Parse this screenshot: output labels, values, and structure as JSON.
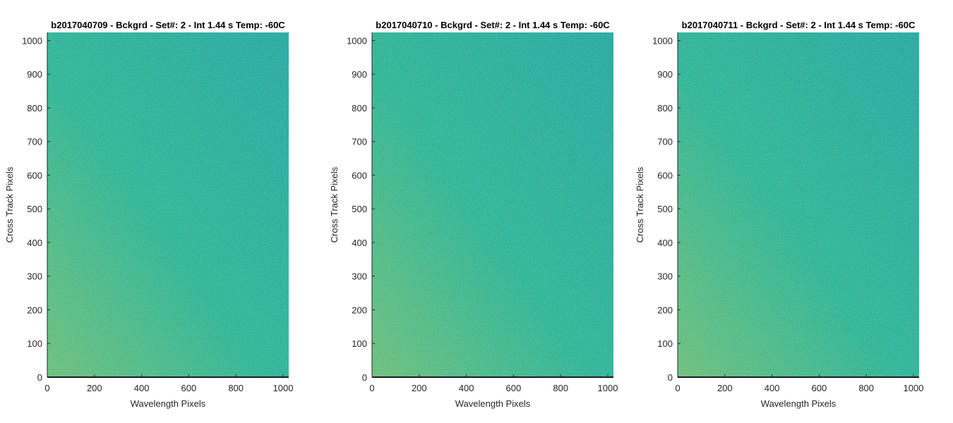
{
  "chart_data": [
    {
      "type": "heatmap",
      "title": "b2017040709 - Bckgrd - Set#: 2 - Int 1.44 s Temp: -60C",
      "xlabel": "Wavelength Pixels",
      "ylabel": "Cross Track Pixels",
      "xlim": [
        0,
        1024
      ],
      "ylim": [
        0,
        1024
      ],
      "xticks": [
        "0",
        "200",
        "400",
        "600",
        "800",
        "1000"
      ],
      "yticks": [
        "0",
        "100",
        "200",
        "300",
        "400",
        "500",
        "600",
        "700",
        "800",
        "900",
        "1000"
      ],
      "colormap": "parula",
      "colors": {
        "low": "#1f9fb0",
        "mid": "#2fb59a",
        "high": "#9fc86a"
      }
    },
    {
      "type": "heatmap",
      "title": "b2017040710 - Bckgrd - Set#: 2 - Int 1.44 s Temp: -60C",
      "xlabel": "Wavelength Pixels",
      "ylabel": "Cross Track Pixels",
      "xlim": [
        0,
        1024
      ],
      "ylim": [
        0,
        1024
      ],
      "xticks": [
        "0",
        "200",
        "400",
        "600",
        "800",
        "1000"
      ],
      "yticks": [
        "0",
        "100",
        "200",
        "300",
        "400",
        "500",
        "600",
        "700",
        "800",
        "900",
        "1000"
      ],
      "colormap": "parula",
      "colors": {
        "low": "#1f9fb0",
        "mid": "#2fb59a",
        "high": "#9fc86a"
      }
    },
    {
      "type": "heatmap",
      "title": "b2017040711 - Bckgrd - Set#: 2 - Int 1.44 s Temp: -60C",
      "xlabel": "Wavelength Pixels",
      "ylabel": "Cross Track Pixels",
      "xlim": [
        0,
        1024
      ],
      "ylim": [
        0,
        1024
      ],
      "xticks": [
        "0",
        "200",
        "400",
        "600",
        "800",
        "1000"
      ],
      "yticks": [
        "0",
        "100",
        "200",
        "300",
        "400",
        "500",
        "600",
        "700",
        "800",
        "900",
        "1000"
      ],
      "colormap": "parula",
      "colors": {
        "low": "#1f9fb0",
        "mid": "#2fb59a",
        "high": "#9fc86a"
      }
    }
  ]
}
